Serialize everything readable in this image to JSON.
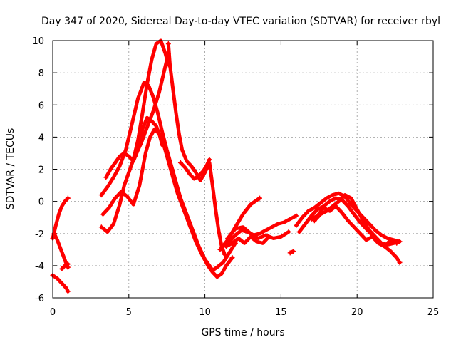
{
  "chart_data": {
    "type": "scatter",
    "title": "Day 347 of 2020, Sidereal Day-to-day VTEC variation (SDTVAR) for receiver rbyl",
    "xlabel": "GPS time / hours",
    "ylabel": "SDTVAR / TECUs",
    "xlim": [
      0,
      25
    ],
    "ylim": [
      -6,
      10
    ],
    "xticks": [
      "0",
      "5",
      "10",
      "15",
      "20",
      "25"
    ],
    "yticks": [
      "-6",
      "-4",
      "-2",
      "0",
      "2",
      "4",
      "6",
      "8",
      "10"
    ],
    "grid": true,
    "marker": "plus",
    "colors": {
      "series": "#ff0000",
      "grid": "#9a9a9a",
      "axes": "#000000"
    },
    "series": [
      {
        "name": "s1",
        "x": [
          0.0,
          0.2,
          0.4,
          0.6,
          0.8,
          1.0
        ],
        "y": [
          -2.3,
          -1.5,
          -0.8,
          -0.3,
          0.0,
          0.2
        ]
      },
      {
        "name": "s2",
        "x": [
          0.1,
          0.3,
          0.5,
          0.7,
          0.9,
          1.0
        ],
        "y": [
          -2.0,
          -2.4,
          -2.9,
          -3.4,
          -3.9,
          -4.1
        ]
      },
      {
        "name": "s3",
        "x": [
          0.0,
          0.3,
          0.6,
          0.9,
          1.0
        ],
        "y": [
          -4.6,
          -4.8,
          -5.1,
          -5.4,
          -5.6
        ]
      },
      {
        "name": "s4",
        "x": [
          0.6,
          0.8,
          1.0
        ],
        "y": [
          -4.2,
          -4.0,
          -3.9
        ]
      },
      {
        "name": "s5",
        "x": [
          3.2,
          3.6,
          4.0,
          4.4,
          4.8,
          5.2,
          5.6,
          6.0,
          6.3,
          6.6,
          6.9,
          7.2,
          7.5,
          7.8,
          8.1,
          8.4,
          8.8,
          9.2,
          9.6,
          10.0,
          10.3,
          10.5,
          10.8,
          11.2,
          11.6,
          12.0
        ],
        "y": [
          0.4,
          0.9,
          1.5,
          2.2,
          3.2,
          4.8,
          6.4,
          7.4,
          7.2,
          6.5,
          5.5,
          4.3,
          3.2,
          2.2,
          1.2,
          0.2,
          -0.8,
          -1.8,
          -2.8,
          -3.6,
          -4.0,
          -4.3,
          -4.1,
          -3.8,
          -3.2,
          -2.6
        ]
      },
      {
        "name": "s6",
        "x": [
          3.3,
          3.7,
          4.1,
          4.5,
          4.9,
          5.3,
          5.7,
          6.1,
          6.4,
          6.7,
          7.0,
          7.3,
          7.6,
          7.9,
          8.2,
          8.6,
          9.0,
          9.4,
          9.8,
          10.2,
          10.5,
          10.8,
          11.1,
          11.4,
          11.8
        ],
        "y": [
          -0.8,
          -0.4,
          0.2,
          0.6,
          0.3,
          -0.2,
          1.0,
          3.0,
          4.0,
          4.5,
          4.2,
          3.5,
          2.5,
          1.5,
          0.5,
          -0.5,
          -1.5,
          -2.5,
          -3.3,
          -4.0,
          -4.4,
          -4.7,
          -4.5,
          -4.0,
          -3.5
        ]
      },
      {
        "name": "s7",
        "x": [
          3.2,
          3.6,
          4.0,
          4.4,
          4.7,
          5.0,
          5.3,
          5.6,
          5.9,
          6.2,
          6.5,
          6.8,
          7.1,
          7.4,
          7.6
        ],
        "y": [
          -1.6,
          -1.9,
          -1.4,
          -0.2,
          1.0,
          1.8,
          2.6,
          3.8,
          5.5,
          7.3,
          8.8,
          9.8,
          10.0,
          9.2,
          8.5
        ]
      },
      {
        "name": "s8",
        "x": [
          3.5,
          3.8,
          4.1,
          4.4,
          4.7,
          5.0,
          5.3,
          5.6,
          5.9,
          6.2,
          6.5,
          6.8,
          7.0,
          7.2
        ],
        "y": [
          1.5,
          2.0,
          2.4,
          2.8,
          3.0,
          2.8,
          2.5,
          3.2,
          4.5,
          5.2,
          5.0,
          4.7,
          4.2,
          3.5
        ]
      },
      {
        "name": "s9",
        "x": [
          5.4,
          5.8,
          6.2,
          6.6,
          7.0,
          7.3,
          7.6
        ],
        "y": [
          2.8,
          3.6,
          4.6,
          5.6,
          6.8,
          8.0,
          9.2
        ]
      },
      {
        "name": "s10",
        "x": [
          7.6,
          7.7,
          7.9,
          8.1,
          8.3,
          8.5,
          8.8,
          9.1,
          9.4,
          9.7,
          10.0,
          10.3,
          10.5,
          10.7,
          10.9,
          11.1,
          11.3
        ],
        "y": [
          9.8,
          8.5,
          7.0,
          5.5,
          4.2,
          3.2,
          2.5,
          2.2,
          1.8,
          1.3,
          1.8,
          2.4,
          1.0,
          -0.5,
          -1.8,
          -2.8,
          -3.3
        ]
      },
      {
        "name": "s11",
        "x": [
          8.4,
          8.7,
          9.0,
          9.3,
          9.6,
          9.9,
          10.1,
          10.3
        ],
        "y": [
          2.4,
          2.1,
          1.7,
          1.4,
          1.6,
          1.9,
          2.2,
          2.6
        ]
      },
      {
        "name": "s12",
        "x": [
          11.0,
          11.5,
          12.0,
          12.5,
          13.0,
          13.3,
          13.6
        ],
        "y": [
          -3.0,
          -2.4,
          -1.6,
          -0.8,
          -0.2,
          0.0,
          0.2
        ]
      },
      {
        "name": "s13",
        "x": [
          11.2,
          11.6,
          12.0,
          12.4,
          12.8,
          13.2,
          13.6,
          14.0,
          14.4,
          14.8,
          15.2,
          15.6,
          16.0
        ],
        "y": [
          -2.8,
          -2.5,
          -2.1,
          -1.8,
          -1.9,
          -2.1,
          -2.0,
          -1.8,
          -1.6,
          -1.4,
          -1.3,
          -1.1,
          -0.9
        ]
      },
      {
        "name": "s14",
        "x": [
          11.5,
          12.0,
          12.5,
          13.0,
          13.5,
          14.0,
          14.5,
          15.0,
          15.5
        ],
        "y": [
          -2.3,
          -1.7,
          -1.6,
          -2.0,
          -2.3,
          -2.1,
          -2.3,
          -2.2,
          -1.9
        ]
      },
      {
        "name": "s15",
        "x": [
          11.4,
          11.8,
          12.2,
          12.6,
          13.0,
          13.4,
          13.8,
          14.2
        ],
        "y": [
          -2.8,
          -2.6,
          -2.3,
          -2.6,
          -2.2,
          -2.5,
          -2.6,
          -2.2
        ]
      },
      {
        "name": "s16",
        "x": [
          15.6,
          15.8
        ],
        "y": [
          -3.2,
          -3.1
        ]
      },
      {
        "name": "s17",
        "x": [
          16.0,
          16.4,
          16.8,
          17.2,
          17.6,
          18.0,
          18.4,
          18.8,
          19.2,
          19.6,
          20.0,
          20.4,
          20.8,
          21.2,
          21.6,
          22.0,
          22.4,
          22.8
        ],
        "y": [
          -1.5,
          -1.0,
          -0.6,
          -0.4,
          -0.1,
          0.2,
          0.4,
          0.5,
          0.3,
          -0.2,
          -0.6,
          -1.0,
          -1.4,
          -1.8,
          -2.1,
          -2.3,
          -2.4,
          -2.5
        ]
      },
      {
        "name": "s18",
        "x": [
          16.2,
          16.6,
          17.0,
          17.4,
          17.8,
          18.2,
          18.6,
          19.0,
          19.4,
          19.8,
          20.2,
          20.6,
          21.0,
          21.4,
          21.8,
          22.2,
          22.6,
          22.8
        ],
        "y": [
          -1.9,
          -1.4,
          -0.9,
          -0.5,
          -0.3,
          0.0,
          0.2,
          0.1,
          -0.3,
          -0.8,
          -1.3,
          -1.7,
          -2.1,
          -2.5,
          -2.8,
          -3.1,
          -3.5,
          -3.8
        ]
      },
      {
        "name": "s19",
        "x": [
          17.2,
          17.6,
          18.0,
          18.4,
          18.8,
          19.2,
          19.6,
          20.0,
          20.4,
          20.8,
          21.2,
          21.6,
          22.0,
          22.4,
          22.8
        ],
        "y": [
          -1.2,
          -0.8,
          -0.6,
          -0.3,
          0.0,
          0.4,
          0.2,
          -0.5,
          -1.2,
          -1.8,
          -2.2,
          -2.6,
          -2.7,
          -2.6,
          -2.5
        ]
      },
      {
        "name": "s20",
        "x": [
          17.0,
          17.4,
          17.8,
          18.2,
          18.6,
          19.0,
          19.4,
          19.8,
          20.2,
          20.6,
          21.0,
          21.4,
          21.8,
          22.2,
          22.6
        ],
        "y": [
          -1.1,
          -0.9,
          -0.4,
          -0.6,
          -0.3,
          -0.7,
          -1.2,
          -1.6,
          -2.0,
          -2.4,
          -2.2,
          -2.6,
          -2.8,
          -2.4,
          -2.6
        ]
      }
    ]
  }
}
